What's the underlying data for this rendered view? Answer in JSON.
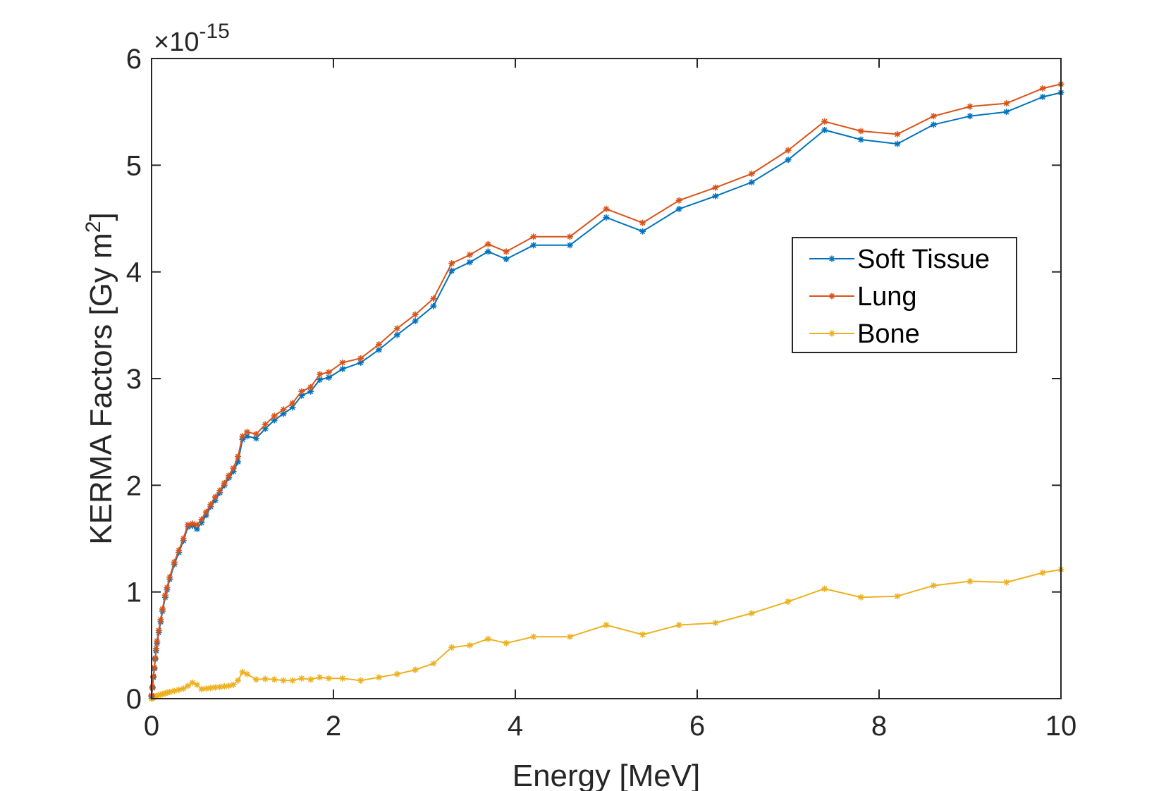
{
  "chart_data": {
    "type": "line",
    "xlabel": "Energy [MeV]",
    "ylabel": "KERMA Factors [Gy m",
    "ylabel_sup": "2",
    "ylabel_end": "]",
    "exponent_label": "×10",
    "exponent_power": "-15",
    "xlim": [
      0,
      10
    ],
    "ylim": [
      0,
      6
    ],
    "xticks": [
      0,
      2,
      4,
      6,
      8,
      10
    ],
    "yticks": [
      0,
      1,
      2,
      3,
      4,
      5,
      6
    ],
    "y_scale_factor": 1e-15,
    "grid": false,
    "legend_position": "upper-right",
    "marker": "asterisk",
    "series": [
      {
        "name": "Soft Tissue",
        "color": "#0072BD",
        "x": [
          0.0,
          0.01,
          0.02,
          0.03,
          0.04,
          0.05,
          0.06,
          0.08,
          0.1,
          0.12,
          0.15,
          0.17,
          0.2,
          0.25,
          0.3,
          0.35,
          0.4,
          0.45,
          0.5,
          0.55,
          0.6,
          0.65,
          0.7,
          0.75,
          0.8,
          0.85,
          0.9,
          0.95,
          1.0,
          1.05,
          1.15,
          1.25,
          1.35,
          1.45,
          1.55,
          1.65,
          1.75,
          1.85,
          1.95,
          2.1,
          2.3,
          2.5,
          2.7,
          2.9,
          3.1,
          3.3,
          3.5,
          3.7,
          3.9,
          4.2,
          4.6,
          5.0,
          5.4,
          5.8,
          6.2,
          6.6,
          7.0,
          7.4,
          7.8,
          8.2,
          8.6,
          9.0,
          9.4,
          9.8,
          10.0
        ],
        "y": [
          0.02,
          0.1,
          0.2,
          0.28,
          0.37,
          0.45,
          0.52,
          0.62,
          0.72,
          0.82,
          0.95,
          1.02,
          1.12,
          1.26,
          1.37,
          1.48,
          1.61,
          1.62,
          1.59,
          1.65,
          1.72,
          1.8,
          1.86,
          1.93,
          2.0,
          2.07,
          2.13,
          2.22,
          2.43,
          2.46,
          2.44,
          2.53,
          2.61,
          2.67,
          2.73,
          2.84,
          2.88,
          2.99,
          3.01,
          3.09,
          3.15,
          3.27,
          3.41,
          3.54,
          3.68,
          4.01,
          4.09,
          4.19,
          4.12,
          4.25,
          4.25,
          4.51,
          4.38,
          4.59,
          4.71,
          4.84,
          5.05,
          5.33,
          5.24,
          5.2,
          5.38,
          5.46,
          5.5,
          5.64,
          5.68
        ]
      },
      {
        "name": "Lung",
        "color": "#D95319",
        "x": [
          0.0,
          0.01,
          0.02,
          0.03,
          0.04,
          0.05,
          0.06,
          0.08,
          0.1,
          0.12,
          0.15,
          0.17,
          0.2,
          0.25,
          0.3,
          0.35,
          0.4,
          0.45,
          0.5,
          0.55,
          0.6,
          0.65,
          0.7,
          0.75,
          0.8,
          0.85,
          0.9,
          0.95,
          1.0,
          1.05,
          1.15,
          1.25,
          1.35,
          1.45,
          1.55,
          1.65,
          1.75,
          1.85,
          1.95,
          2.1,
          2.3,
          2.5,
          2.7,
          2.9,
          3.1,
          3.3,
          3.5,
          3.7,
          3.9,
          4.2,
          4.6,
          5.0,
          5.4,
          5.8,
          6.2,
          6.6,
          7.0,
          7.4,
          7.8,
          8.2,
          8.6,
          9.0,
          9.4,
          9.8,
          10.0
        ],
        "y": [
          0.03,
          0.11,
          0.21,
          0.29,
          0.38,
          0.47,
          0.54,
          0.64,
          0.74,
          0.84,
          0.97,
          1.04,
          1.14,
          1.28,
          1.39,
          1.5,
          1.63,
          1.64,
          1.63,
          1.68,
          1.75,
          1.82,
          1.89,
          1.95,
          2.02,
          2.09,
          2.16,
          2.27,
          2.46,
          2.5,
          2.48,
          2.57,
          2.65,
          2.71,
          2.77,
          2.88,
          2.92,
          3.04,
          3.06,
          3.15,
          3.19,
          3.32,
          3.47,
          3.6,
          3.75,
          4.08,
          4.16,
          4.26,
          4.19,
          4.33,
          4.33,
          4.59,
          4.46,
          4.67,
          4.79,
          4.92,
          5.14,
          5.41,
          5.32,
          5.29,
          5.46,
          5.55,
          5.58,
          5.72,
          5.76
        ]
      },
      {
        "name": "Bone",
        "color": "#EDB120",
        "x": [
          0.0,
          0.01,
          0.02,
          0.03,
          0.04,
          0.05,
          0.06,
          0.08,
          0.1,
          0.12,
          0.15,
          0.17,
          0.2,
          0.25,
          0.3,
          0.35,
          0.4,
          0.45,
          0.5,
          0.55,
          0.6,
          0.65,
          0.7,
          0.75,
          0.8,
          0.85,
          0.9,
          0.95,
          1.0,
          1.05,
          1.15,
          1.25,
          1.35,
          1.45,
          1.55,
          1.65,
          1.75,
          1.85,
          1.95,
          2.1,
          2.3,
          2.5,
          2.7,
          2.9,
          3.1,
          3.3,
          3.5,
          3.7,
          3.9,
          4.2,
          4.6,
          5.0,
          5.4,
          5.8,
          6.2,
          6.6,
          7.0,
          7.4,
          7.8,
          8.2,
          8.6,
          9.0,
          9.4,
          9.8,
          10.0
        ],
        "y": [
          0.0,
          0.005,
          0.01,
          0.014,
          0.018,
          0.022,
          0.026,
          0.032,
          0.038,
          0.043,
          0.05,
          0.056,
          0.063,
          0.073,
          0.083,
          0.094,
          0.12,
          0.15,
          0.13,
          0.09,
          0.095,
          0.1,
          0.105,
          0.11,
          0.115,
          0.12,
          0.13,
          0.17,
          0.25,
          0.23,
          0.18,
          0.185,
          0.18,
          0.17,
          0.17,
          0.19,
          0.18,
          0.2,
          0.19,
          0.19,
          0.17,
          0.2,
          0.23,
          0.27,
          0.33,
          0.48,
          0.5,
          0.56,
          0.52,
          0.58,
          0.58,
          0.69,
          0.6,
          0.69,
          0.71,
          0.8,
          0.91,
          1.03,
          0.95,
          0.96,
          1.06,
          1.1,
          1.09,
          1.18,
          1.21
        ]
      }
    ]
  }
}
